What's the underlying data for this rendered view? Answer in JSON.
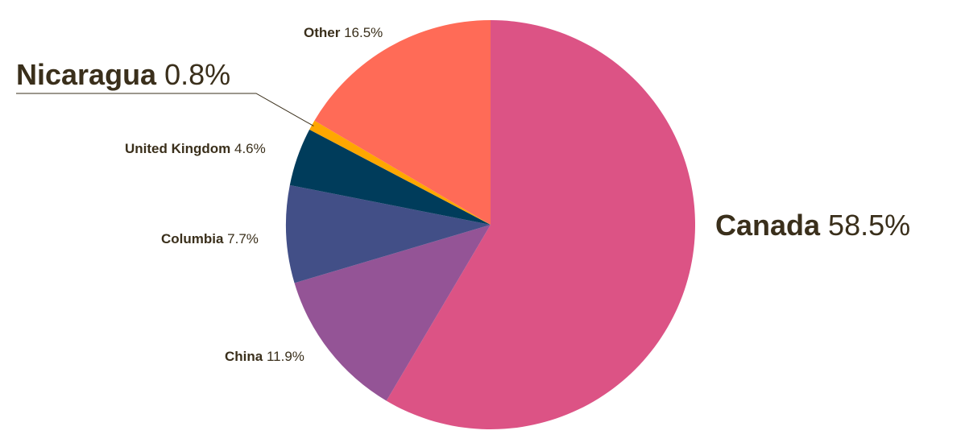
{
  "chart_data": {
    "type": "pie",
    "start": "12 o'clock",
    "direction": "clockwise",
    "slices": [
      {
        "name": "Canada",
        "value": 58.5,
        "pct": "58.5%",
        "color": "#dc5385",
        "emphasis": "large"
      },
      {
        "name": "China",
        "value": 11.9,
        "pct": "11.9%",
        "color": "#945496",
        "emphasis": "small"
      },
      {
        "name": "Columbia",
        "value": 7.7,
        "pct": "7.7%",
        "color": "#424f87",
        "emphasis": "small"
      },
      {
        "name": "United Kingdom",
        "value": 4.6,
        "pct": "4.6%",
        "color": "#003c5b",
        "emphasis": "small"
      },
      {
        "name": "Nicaragua",
        "value": 0.8,
        "pct": "0.8%",
        "color": "#ffa700",
        "emphasis": "large",
        "leader_line": true
      },
      {
        "name": "Other",
        "value": 16.5,
        "pct": "16.5%",
        "color": "#ff6b57",
        "emphasis": "small"
      }
    ]
  }
}
